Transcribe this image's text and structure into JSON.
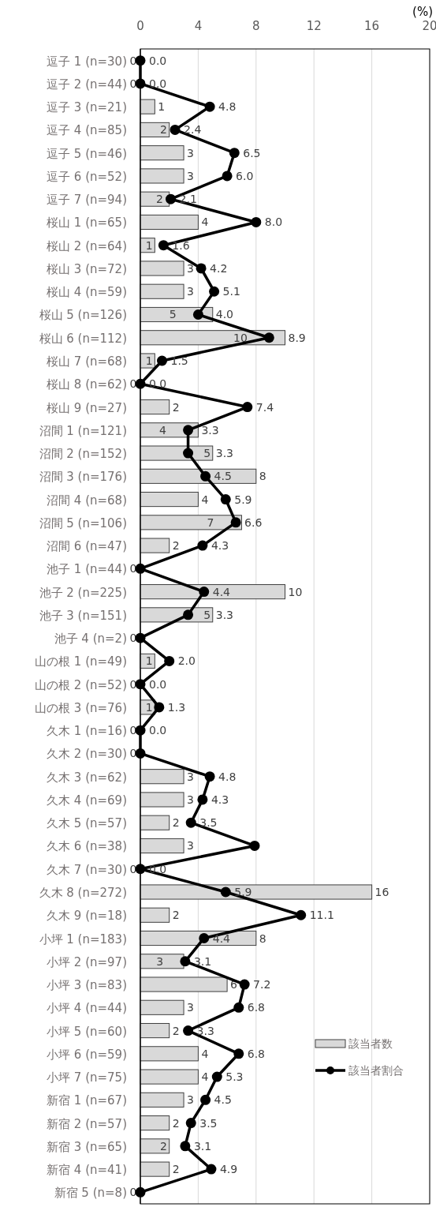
{
  "chart_data": {
    "type": "bar",
    "orientation": "horizontal",
    "xlabel": "(%)",
    "xlim": [
      0,
      20
    ],
    "xticks": [
      0,
      4,
      8,
      12,
      16,
      20
    ],
    "grid": "x",
    "legend": "bottom right",
    "marker": "circle",
    "categories": [
      "逗子 1 (n=30)",
      "逗子 2 (n=44)",
      "逗子 3 (n=21)",
      "逗子 4 (n=85)",
      "逗子 5 (n=46)",
      "逗子 6 (n=52)",
      "逗子 7 (n=94)",
      "桜山 1 (n=65)",
      "桜山 2 (n=64)",
      "桜山 3 (n=72)",
      "桜山 4 (n=59)",
      "桜山 5 (n=126)",
      "桜山 6 (n=112)",
      "桜山 7 (n=68)",
      "桜山 8 (n=62)",
      "桜山 9 (n=27)",
      "沼間 1 (n=121)",
      "沼間 2 (n=152)",
      "沼間 3 (n=176)",
      "沼間 4 (n=68)",
      "沼間 5 (n=106)",
      "沼間 6 (n=47)",
      "池子 1 (n=44)",
      "池子 2 (n=225)",
      "池子 3 (n=151)",
      "池子 4 (n=2)",
      "山の根 1 (n=49)",
      "山の根 2 (n=52)",
      "山の根 3 (n=76)",
      "久木 1 (n=16)",
      "久木 2 (n=30)",
      "久木 3 (n=62)",
      "久木 4 (n=69)",
      "久木 5 (n=57)",
      "久木 6 (n=38)",
      "久木 7 (n=30)",
      "久木 8 (n=272)",
      "久木 9 (n=18)",
      "小坪 1 (n=183)",
      "小坪 2 (n=97)",
      "小坪 3 (n=83)",
      "小坪 4 (n=44)",
      "小坪 5 (n=60)",
      "小坪 6 (n=59)",
      "小坪 7 (n=75)",
      "新宿 1 (n=67)",
      "新宿 2 (n=57)",
      "新宿 3 (n=65)",
      "新宿 4 (n=41)",
      "新宿 5 (n=8)"
    ],
    "series": [
      {
        "name": "該当者数",
        "type": "bar",
        "color": "#d9d9d9",
        "values": [
          0,
          0,
          1,
          2,
          3,
          3,
          2,
          4,
          1,
          3,
          3,
          5,
          10,
          1,
          0,
          2,
          4,
          5,
          8,
          4,
          7,
          2,
          0,
          10,
          5,
          0,
          1,
          0,
          1,
          0,
          0,
          3,
          3,
          2,
          3,
          0,
          16,
          2,
          8,
          3,
          6,
          3,
          2,
          4,
          4,
          3,
          2,
          2,
          2,
          0
        ],
        "value_labels": [
          "0",
          "0",
          "1",
          "2",
          "3",
          "3",
          "2",
          "4",
          "1",
          "3",
          "3",
          "5",
          "10",
          "1",
          "0",
          "2",
          "4",
          "5",
          "8",
          "4",
          "7",
          "2",
          "0",
          "10",
          "5",
          "0",
          "1",
          "0",
          "1",
          "0",
          "0",
          "3",
          "3",
          "2",
          "3",
          "0",
          "16",
          "2",
          "8",
          "3",
          "6",
          "3",
          "2",
          "4",
          "4",
          "3",
          "2",
          "2",
          "2",
          "0"
        ]
      },
      {
        "name": "該当者割合",
        "type": "line",
        "color": "#000000",
        "values": [
          0,
          0,
          4.8,
          2.4,
          6.5,
          6.0,
          2.1,
          8.0,
          1.6,
          4.2,
          5.1,
          4.0,
          8.9,
          1.5,
          0,
          7.4,
          3.3,
          3.3,
          4.5,
          5.9,
          6.6,
          4.3,
          0,
          4.4,
          3.3,
          0,
          2.0,
          0,
          1.3,
          0,
          0,
          4.8,
          4.3,
          3.5,
          7.9,
          0,
          5.9,
          11.1,
          4.4,
          3.1,
          7.2,
          6.8,
          3.3,
          6.8,
          5.3,
          4.5,
          3.5,
          3.1,
          4.9,
          0
        ],
        "value_labels": [
          "0.0",
          "0.0",
          "4.8",
          "2.4",
          "6.5",
          "6.0",
          "2.1",
          "8.0",
          "1.6",
          "4.2",
          "5.1",
          "4.0",
          "8.9",
          "1.5",
          "0.0",
          "7.4",
          "3.3",
          "3.3",
          "4.5",
          "5.9",
          "6.6",
          "4.3",
          null,
          "4.4",
          "3.3",
          null,
          "2.0",
          "0.0",
          "1.3",
          "0.0",
          null,
          "4.8",
          "4.3",
          "3.5",
          null,
          "0.0",
          "5.9",
          "11.1",
          "4.4",
          "3.1",
          "7.2",
          "6.8",
          "3.3",
          "6.8",
          "5.3",
          "4.5",
          "3.5",
          "3.1",
          "4.9",
          null
        ]
      }
    ]
  }
}
